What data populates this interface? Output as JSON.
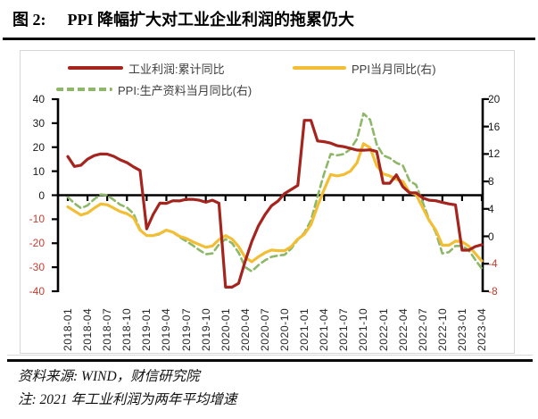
{
  "title": {
    "label": "图 2:",
    "text": "PPI 降幅扩大对工业企业利润的拖累仍大"
  },
  "footer": {
    "source": "资料来源: WIND，财信研究院",
    "note": "注: 2021 年工业利润为两年平均增速"
  },
  "chart_data": {
    "type": "line",
    "n_points": 64,
    "x_tick_labels": [
      "2018-01",
      "2018-04",
      "2018-07",
      "2018-10",
      "2019-01",
      "2019-04",
      "2019-07",
      "2019-10",
      "2020-01",
      "2020-04",
      "2020-07",
      "2020-10",
      "2021-01",
      "2021-04",
      "2021-07",
      "2021-10",
      "2022-01",
      "2022-04",
      "2022-07",
      "2022-10",
      "2023-01",
      "2023-04"
    ],
    "x_months_per_tick": 3,
    "left_axis": {
      "ticks": [
        40,
        30,
        20,
        10,
        0,
        -10,
        -20,
        -30,
        -40
      ],
      "range": [
        -40,
        40
      ]
    },
    "right_axis": {
      "ticks": [
        20,
        16,
        12,
        8,
        4,
        0,
        -4,
        -8
      ],
      "range": [
        -8,
        20
      ]
    },
    "grid": false,
    "legend_position": "top",
    "tick_color_positive": "#1a1a1a",
    "tick_color_negative": "#c63c32",
    "axis_line_color": "#000000",
    "series": [
      {
        "name": "工业利润:累计同比",
        "axis": "left",
        "color": "#a5241d",
        "style": "solid",
        "values": [
          16.1,
          12.0,
          12.5,
          15.0,
          16.5,
          17.2,
          17.1,
          16.2,
          14.7,
          13.6,
          11.8,
          10.3,
          -14.0,
          -8.0,
          -3.3,
          -3.4,
          -2.3,
          -2.4,
          -1.7,
          -1.7,
          -2.1,
          -2.9,
          -2.1,
          -3.3,
          -38.3,
          -38.3,
          -36.7,
          -27.4,
          -19.3,
          -12.8,
          -8.1,
          -4.4,
          -2.4,
          0.7,
          2.4,
          4.1,
          31.2,
          31.2,
          22.6,
          22.3,
          21.7,
          20.6,
          20.2,
          19.5,
          18.8,
          18.7,
          18.9,
          18.2,
          5.0,
          5.0,
          8.5,
          3.5,
          1.0,
          1.0,
          -1.1,
          -2.1,
          -2.3,
          -3.0,
          -3.6,
          -4.0,
          -22.9,
          -22.9,
          -21.4,
          -20.6
        ]
      },
      {
        "name": "PPI当月同比(右)",
        "axis": "right",
        "color": "#f2be35",
        "style": "solid",
        "values": [
          4.3,
          3.7,
          3.1,
          3.4,
          4.1,
          4.7,
          4.6,
          4.1,
          3.6,
          3.3,
          2.7,
          0.9,
          0.1,
          0.1,
          0.4,
          0.9,
          0.6,
          0.0,
          -0.3,
          -0.8,
          -1.2,
          -1.6,
          -1.4,
          -0.5,
          0.1,
          -0.4,
          -1.5,
          -3.1,
          -3.7,
          -3.0,
          -2.4,
          -2.0,
          -2.1,
          -2.1,
          -1.5,
          -0.4,
          0.3,
          1.7,
          4.4,
          6.8,
          9.0,
          8.8,
          9.0,
          9.5,
          10.7,
          13.5,
          12.9,
          10.3,
          9.1,
          8.8,
          8.3,
          8.0,
          6.4,
          6.1,
          4.2,
          2.3,
          0.9,
          -1.3,
          -1.3,
          -0.7,
          -0.8,
          -1.4,
          -2.5,
          -3.6
        ]
      },
      {
        "name": "PPI:生产资料当月同比(右)",
        "axis": "right",
        "color": "#8cb868",
        "style": "dashed",
        "values": [
          5.7,
          4.8,
          4.1,
          4.5,
          5.4,
          6.1,
          6.0,
          5.3,
          4.6,
          4.2,
          3.3,
          1.0,
          0.1,
          0.1,
          0.3,
          0.9,
          0.6,
          -0.1,
          -0.7,
          -1.3,
          -2.0,
          -2.6,
          -2.5,
          -1.2,
          -0.4,
          -1.0,
          -2.4,
          -4.5,
          -5.1,
          -4.2,
          -3.5,
          -3.0,
          -2.8,
          -2.7,
          -1.8,
          -0.5,
          0.5,
          2.3,
          5.8,
          9.1,
          12.0,
          11.8,
          12.0,
          12.7,
          14.2,
          17.9,
          17.0,
          13.4,
          11.8,
          11.4,
          10.7,
          10.3,
          8.1,
          7.5,
          5.0,
          2.4,
          0.6,
          -2.5,
          -2.3,
          -1.4,
          -1.4,
          -2.0,
          -3.4,
          -4.7
        ]
      }
    ]
  }
}
